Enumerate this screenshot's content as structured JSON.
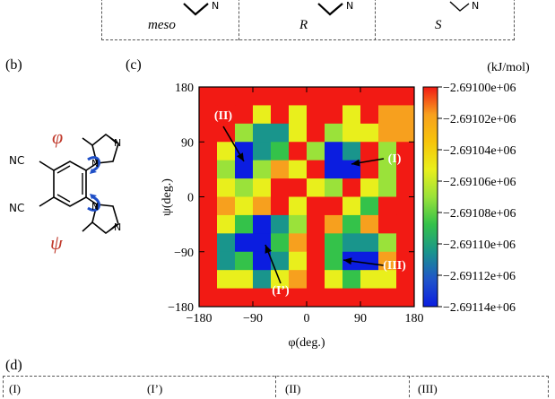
{
  "top_panel": {
    "labels": [
      "meso",
      "R",
      "S"
    ]
  },
  "panel_b": {
    "label": "(b)",
    "phi_symbol": "φ",
    "psi_symbol": "ψ",
    "nc_top": "NC",
    "nc_bottom": "NC",
    "n_upper": "N",
    "n_lower": "N",
    "n_top_ring": "N",
    "n_bottom_ring": "N"
  },
  "panel_c": {
    "label": "(c)"
  },
  "panel_d": {
    "label": "(d)",
    "boxes": [
      "(I)",
      "(I’)",
      "(II)",
      "(III)"
    ]
  },
  "colors": {
    "red": "#f21a14",
    "orange": "#f7a01e",
    "gold": "#f7c40a",
    "yellow": "#e9ef1c",
    "lime": "#9ae23a",
    "green": "#34c24a",
    "teal": "#19958c",
    "blue_mid": "#2055c9",
    "blue": "#0b1de0",
    "annotation_white": "#ffffff",
    "arrow_black": "#000000",
    "phi_psi_red": "#c0392b",
    "rotation_blue": "#1f4fc7"
  },
  "chart_data": {
    "type": "heatmap",
    "title": "",
    "xlabel": "φ(deg.)",
    "ylabel": "ψ(deg.)",
    "xlim": [
      -180,
      180
    ],
    "ylim": [
      -180,
      180
    ],
    "x_ticks": [
      "−180",
      "−90",
      "0",
      "90",
      "180"
    ],
    "y_ticks": [
      "180",
      "90",
      "0",
      "−90",
      "−180"
    ],
    "grid_step_deg": 30,
    "grid": [
      [
        "R",
        "R",
        "R",
        "R",
        "R",
        "R",
        "R",
        "R",
        "R",
        "R",
        "R",
        "R"
      ],
      [
        "R",
        "R",
        "R",
        "Y",
        "R",
        "Y",
        "R",
        "R",
        "Y",
        "R",
        "O",
        "O"
      ],
      [
        "R",
        "R",
        "L",
        "T",
        "T",
        "Y",
        "R",
        "L",
        "Y",
        "Y",
        "O",
        "O"
      ],
      [
        "R",
        "Y",
        "B",
        "T",
        "G",
        "R",
        "L",
        "B",
        "T",
        "R",
        "L",
        "R"
      ],
      [
        "R",
        "L",
        "B",
        "L",
        "O",
        "Y",
        "R",
        "B",
        "B",
        "R",
        "L",
        "R"
      ],
      [
        "R",
        "Y",
        "L",
        "Y",
        "R",
        "R",
        "Y",
        "L",
        "R",
        "Y",
        "L",
        "R"
      ],
      [
        "R",
        "O",
        "Y",
        "O",
        "R",
        "Y",
        "R",
        "R",
        "Y",
        "G",
        "R",
        "R"
      ],
      [
        "R",
        "Y",
        "G",
        "B",
        "T",
        "L",
        "R",
        "O",
        "G",
        "O",
        "R",
        "R"
      ],
      [
        "R",
        "T",
        "B",
        "B",
        "G",
        "O",
        "R",
        "G",
        "T",
        "T",
        "L",
        "R"
      ],
      [
        "R",
        "T",
        "G",
        "B",
        "T",
        "Y",
        "R",
        "G",
        "B",
        "B",
        "O",
        "R"
      ],
      [
        "R",
        "Y",
        "Y",
        "T",
        "Y",
        "O",
        "R",
        "Y",
        "G",
        "Y",
        "Y",
        "R"
      ],
      [
        "R",
        "R",
        "R",
        "R",
        "R",
        "R",
        "R",
        "R",
        "R",
        "R",
        "R",
        "R"
      ]
    ],
    "category_colors": {
      "R": "#f21a14",
      "O": "#f7a01e",
      "Y": "#e9ef1c",
      "L": "#9ae23a",
      "G": "#34c24a",
      "T": "#19958c",
      "B": "#0b1de0"
    },
    "annotations": [
      {
        "label": "(I)",
        "phi": 60,
        "psi": 45
      },
      {
        "label": "(I’)",
        "phi": -60,
        "psi": -75
      },
      {
        "label": "(II)",
        "phi": -105,
        "psi": 105
      },
      {
        "label": "(III)",
        "phi": 75,
        "psi": -105
      }
    ],
    "colorbar": {
      "unit": "(kJ/mol)",
      "min": -2691140,
      "max": -2691000,
      "tick_labels": [
        "−2.69100e+06",
        "−2.69102e+06",
        "−2.69104e+06",
        "−2.69106e+06",
        "−2.69108e+06",
        "−2.69110e+06",
        "−2.69112e+06",
        "−2.69114e+06"
      ],
      "stops": [
        "#f21a14",
        "#f7a01e",
        "#f7c40a",
        "#e9ef1c",
        "#9ae23a",
        "#34c24a",
        "#19958c",
        "#2055c9",
        "#0b1de0"
      ]
    }
  }
}
